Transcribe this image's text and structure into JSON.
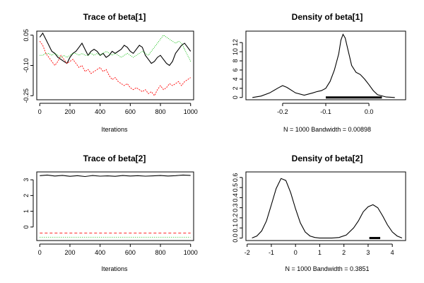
{
  "chart_data": [
    {
      "id": "trace1",
      "type": "line",
      "title": "Trace of beta[1]",
      "xlabel": "Iterations",
      "ylabel": "",
      "xlim": [
        -20,
        1020
      ],
      "ylim": [
        -0.27,
        0.07
      ],
      "x_ticks": [
        0,
        200,
        400,
        600,
        800,
        1000
      ],
      "x_tick_labels": [
        "0",
        "200",
        "400",
        "600",
        "800",
        "1000"
      ],
      "y_ticks": [
        0.05,
        -0.1,
        -0.25
      ],
      "y_tick_labels": [
        "0.05",
        "-0.10",
        "-0.25"
      ],
      "series": [
        {
          "color": "#000000",
          "dash": "none",
          "x": [
            0,
            20,
            40,
            60,
            80,
            100,
            120,
            140,
            160,
            180,
            200,
            220,
            240,
            260,
            280,
            300,
            320,
            340,
            360,
            380,
            400,
            420,
            440,
            460,
            480,
            500,
            520,
            540,
            560,
            580,
            600,
            620,
            640,
            660,
            680,
            700,
            720,
            740,
            760,
            780,
            800,
            820,
            840,
            860,
            880,
            900,
            920,
            940,
            960,
            980,
            1000
          ],
          "y": [
            0.04,
            0.06,
            0.03,
            0.0,
            -0.03,
            -0.04,
            -0.06,
            -0.07,
            -0.08,
            -0.09,
            -0.06,
            -0.04,
            -0.03,
            -0.01,
            0.01,
            -0.02,
            -0.05,
            -0.03,
            -0.02,
            -0.03,
            -0.05,
            -0.04,
            -0.06,
            -0.05,
            -0.03,
            -0.04,
            -0.03,
            -0.02,
            0.0,
            -0.01,
            -0.03,
            -0.04,
            -0.02,
            0.0,
            -0.01,
            -0.05,
            -0.07,
            -0.09,
            -0.08,
            -0.06,
            -0.05,
            -0.07,
            -0.09,
            -0.1,
            -0.08,
            -0.04,
            -0.02,
            0.0,
            0.01,
            -0.01,
            -0.03
          ]
        },
        {
          "color": "#ff0000",
          "dash": "2,1.5",
          "x": [
            0,
            20,
            40,
            60,
            80,
            100,
            120,
            140,
            160,
            180,
            200,
            220,
            240,
            260,
            280,
            300,
            320,
            340,
            360,
            380,
            400,
            420,
            440,
            460,
            480,
            500,
            520,
            540,
            560,
            580,
            600,
            620,
            640,
            660,
            680,
            700,
            720,
            740,
            760,
            780,
            800,
            820,
            840,
            860,
            880,
            900,
            920,
            940,
            960,
            980,
            1000
          ],
          "y": [
            0.02,
            0.0,
            -0.04,
            -0.06,
            -0.08,
            -0.1,
            -0.08,
            -0.05,
            -0.07,
            -0.09,
            -0.08,
            -0.07,
            -0.09,
            -0.11,
            -0.1,
            -0.13,
            -0.12,
            -0.14,
            -0.13,
            -0.12,
            -0.11,
            -0.13,
            -0.12,
            -0.15,
            -0.17,
            -0.16,
            -0.18,
            -0.19,
            -0.2,
            -0.19,
            -0.21,
            -0.22,
            -0.21,
            -0.22,
            -0.23,
            -0.22,
            -0.24,
            -0.23,
            -0.25,
            -0.22,
            -0.2,
            -0.22,
            -0.21,
            -0.19,
            -0.2,
            -0.19,
            -0.18,
            -0.2,
            -0.18,
            -0.17,
            -0.16
          ]
        },
        {
          "color": "#00bb00",
          "dash": "1,1.5",
          "x": [
            0,
            20,
            40,
            60,
            80,
            100,
            120,
            140,
            160,
            180,
            200,
            220,
            240,
            260,
            280,
            300,
            320,
            340,
            360,
            380,
            400,
            420,
            440,
            460,
            480,
            500,
            520,
            540,
            560,
            580,
            600,
            620,
            640,
            660,
            680,
            700,
            720,
            740,
            760,
            780,
            800,
            820,
            840,
            860,
            880,
            900,
            920,
            940,
            960,
            980,
            1000
          ],
          "y": [
            -0.05,
            -0.05,
            -0.04,
            -0.04,
            -0.05,
            -0.04,
            -0.05,
            -0.06,
            -0.05,
            -0.06,
            -0.05,
            -0.04,
            -0.04,
            -0.05,
            -0.04,
            -0.05,
            -0.05,
            -0.04,
            -0.05,
            -0.04,
            -0.05,
            -0.04,
            -0.03,
            -0.04,
            -0.05,
            -0.04,
            -0.05,
            -0.06,
            -0.05,
            -0.04,
            -0.05,
            -0.06,
            -0.05,
            -0.04,
            -0.03,
            -0.04,
            -0.05,
            -0.03,
            -0.01,
            0.01,
            0.03,
            0.05,
            0.04,
            0.03,
            0.02,
            0.01,
            0.02,
            0.01,
            -0.02,
            -0.05,
            -0.08
          ]
        }
      ]
    },
    {
      "id": "density1",
      "type": "line",
      "title": "Density of beta[1]",
      "xlabel": "N = 1000   Bandwidth = 0.00898",
      "ylabel": "",
      "xlim": [
        -0.285,
        0.085
      ],
      "ylim": [
        -0.5,
        14.5
      ],
      "x_ticks": [
        -0.2,
        -0.1,
        0.0
      ],
      "x_tick_labels": [
        "-0.2",
        "-0.1",
        "0.0"
      ],
      "y_ticks": [
        0,
        2,
        4,
        6,
        8,
        10,
        12
      ],
      "y_tick_labels": [
        "0",
        "2",
        "4",
        "6",
        "8",
        "10",
        "12"
      ],
      "series": [
        {
          "color": "#000000",
          "dash": "none",
          "x": [
            -0.27,
            -0.25,
            -0.23,
            -0.21,
            -0.2,
            -0.19,
            -0.17,
            -0.15,
            -0.13,
            -0.12,
            -0.11,
            -0.1,
            -0.09,
            -0.08,
            -0.07,
            -0.065,
            -0.06,
            -0.055,
            -0.05,
            -0.045,
            -0.04,
            -0.03,
            -0.02,
            -0.01,
            0.0,
            0.01,
            0.02,
            0.04,
            0.06
          ],
          "y": [
            0.0,
            0.3,
            1.0,
            2.1,
            2.6,
            2.2,
            1.0,
            0.5,
            1.0,
            1.3,
            1.5,
            2.0,
            3.5,
            6.0,
            9.5,
            12.5,
            13.8,
            13.0,
            11.0,
            9.0,
            7.0,
            5.5,
            5.0,
            4.0,
            2.8,
            1.5,
            0.6,
            0.1,
            0.0
          ]
        }
      ],
      "rug": {
        "from": -0.1,
        "to": 0.03
      }
    },
    {
      "id": "trace2",
      "type": "line",
      "title": "Trace of beta[2]",
      "xlabel": "Iterations",
      "ylabel": "",
      "xlim": [
        -20,
        1020
      ],
      "ylim": [
        -0.86,
        3.5
      ],
      "x_ticks": [
        0,
        200,
        400,
        600,
        800,
        1000
      ],
      "x_tick_labels": [
        "0",
        "200",
        "400",
        "600",
        "800",
        "1000"
      ],
      "y_ticks": [
        0,
        1,
        2,
        3
      ],
      "y_tick_labels": [
        "0",
        "1",
        "2",
        "3"
      ],
      "series": [
        {
          "color": "#000000",
          "dash": "none",
          "x": [
            0,
            50,
            100,
            150,
            200,
            250,
            300,
            350,
            400,
            450,
            500,
            550,
            600,
            650,
            700,
            750,
            800,
            850,
            900,
            950,
            1000
          ],
          "y": [
            3.26,
            3.3,
            3.24,
            3.28,
            3.22,
            3.26,
            3.21,
            3.27,
            3.23,
            3.25,
            3.22,
            3.27,
            3.24,
            3.26,
            3.23,
            3.25,
            3.27,
            3.24,
            3.26,
            3.3,
            3.28
          ]
        },
        {
          "color": "#ff0000",
          "dash": "4,3",
          "x": [
            0,
            1000
          ],
          "y": [
            -0.38,
            -0.38
          ]
        },
        {
          "color": "#00bb00",
          "dash": "1,2",
          "x": [
            0,
            1000
          ],
          "y": [
            -0.65,
            -0.65
          ]
        }
      ]
    },
    {
      "id": "density2",
      "type": "line",
      "title": "Density of beta[2]",
      "xlabel": "N = 1000   Bandwidth = 0.3851",
      "ylabel": "",
      "xlim": [
        -2.05,
        4.55
      ],
      "ylim": [
        -0.025,
        0.655
      ],
      "x_ticks": [
        -2,
        -1,
        0,
        1,
        2,
        3,
        4
      ],
      "x_tick_labels": [
        "-2",
        "-1",
        "0",
        "1",
        "2",
        "3",
        "4"
      ],
      "y_ticks": [
        0.0,
        0.1,
        0.2,
        0.3,
        0.4,
        0.5,
        0.6
      ],
      "y_tick_labels": [
        "0.0",
        "0.1",
        "0.2",
        "0.3",
        "0.4",
        "0.5",
        "0.6"
      ],
      "series": [
        {
          "color": "#000000",
          "dash": "none",
          "x": [
            -1.8,
            -1.6,
            -1.4,
            -1.2,
            -1.0,
            -0.8,
            -0.6,
            -0.4,
            -0.2,
            0.0,
            0.2,
            0.4,
            0.6,
            0.8,
            1.0,
            1.2,
            1.5,
            1.8,
            2.1,
            2.4,
            2.6,
            2.8,
            3.0,
            3.2,
            3.4,
            3.6,
            3.8,
            4.0,
            4.2,
            4.4
          ],
          "y": [
            0.0,
            0.02,
            0.07,
            0.17,
            0.33,
            0.49,
            0.59,
            0.57,
            0.45,
            0.29,
            0.15,
            0.06,
            0.02,
            0.005,
            0.0,
            0.0,
            0.0,
            0.005,
            0.03,
            0.1,
            0.17,
            0.26,
            0.31,
            0.33,
            0.3,
            0.22,
            0.13,
            0.06,
            0.02,
            0.0
          ]
        }
      ],
      "rug": {
        "from": 3.05,
        "to": 3.5
      }
    }
  ]
}
